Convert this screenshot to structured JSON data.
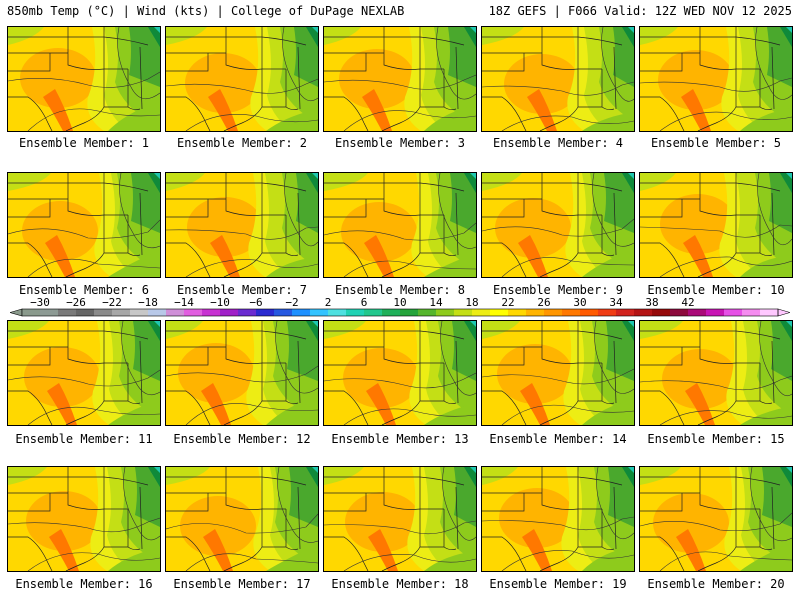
{
  "header": {
    "left": "850mb Temp (°C) | Wind (kts) | College of DuPage NEXLAB",
    "right": "18Z GEFS | F066 Valid: 12Z WED NOV 12 2025"
  },
  "colorbar": {
    "ticks": [
      "−30",
      "−26",
      "−22",
      "−18",
      "−14",
      "−10",
      "−6",
      "−2",
      "2",
      "6",
      "10",
      "14",
      "18",
      "22",
      "26",
      "30",
      "34",
      "38",
      "42"
    ],
    "colors": [
      "#8a9a8c",
      "#8d9a94",
      "#7a7a7a",
      "#666666",
      "#8a8a8a",
      "#a7a7a7",
      "#c7c7c7",
      "#b8c8e8",
      "#cf8fd8",
      "#e15ee0",
      "#c732d2",
      "#a020c8",
      "#6a2bd0",
      "#2a2ad0",
      "#2658e0",
      "#1e90ff",
      "#33c3ff",
      "#4ee0e0",
      "#20d2b4",
      "#22c78d",
      "#1fb05a",
      "#24a33a",
      "#55b52c",
      "#8ecb1c",
      "#c4df15",
      "#eded14",
      "#ffff00",
      "#ffd800",
      "#ffb400",
      "#ff9600",
      "#ff7800",
      "#ff5a00",
      "#f03c14",
      "#d2231e",
      "#b41414",
      "#960a0a",
      "#8c0a3c",
      "#aa0a78",
      "#c814b4",
      "#e650e6",
      "#f58cf0",
      "#ffc8ff"
    ]
  },
  "members": [
    {
      "label": "Ensemble Member: 1"
    },
    {
      "label": "Ensemble Member: 2"
    },
    {
      "label": "Ensemble Member: 3"
    },
    {
      "label": "Ensemble Member: 4"
    },
    {
      "label": "Ensemble Member: 5"
    },
    {
      "label": "Ensemble Member: 6"
    },
    {
      "label": "Ensemble Member: 7"
    },
    {
      "label": "Ensemble Member: 8"
    },
    {
      "label": "Ensemble Member: 9"
    },
    {
      "label": "Ensemble Member: 10"
    },
    {
      "label": "Ensemble Member: 11"
    },
    {
      "label": "Ensemble Member: 12"
    },
    {
      "label": "Ensemble Member: 13"
    },
    {
      "label": "Ensemble Member: 14"
    },
    {
      "label": "Ensemble Member: 15"
    },
    {
      "label": "Ensemble Member: 16"
    },
    {
      "label": "Ensemble Member: 17"
    },
    {
      "label": "Ensemble Member: 18"
    },
    {
      "label": "Ensemble Member: 19"
    },
    {
      "label": "Ensemble Member: 20"
    }
  ],
  "map_colors": {
    "green_dark": "#0f8a3a",
    "green": "#4aa82d",
    "green_light": "#8ecb1c",
    "yellow_green": "#c4df15",
    "yellow": "#eded14",
    "yellow_orange": "#ffd800",
    "orange": "#ffb400",
    "orange_dark": "#ff7800",
    "teal": "#20c8b0"
  }
}
